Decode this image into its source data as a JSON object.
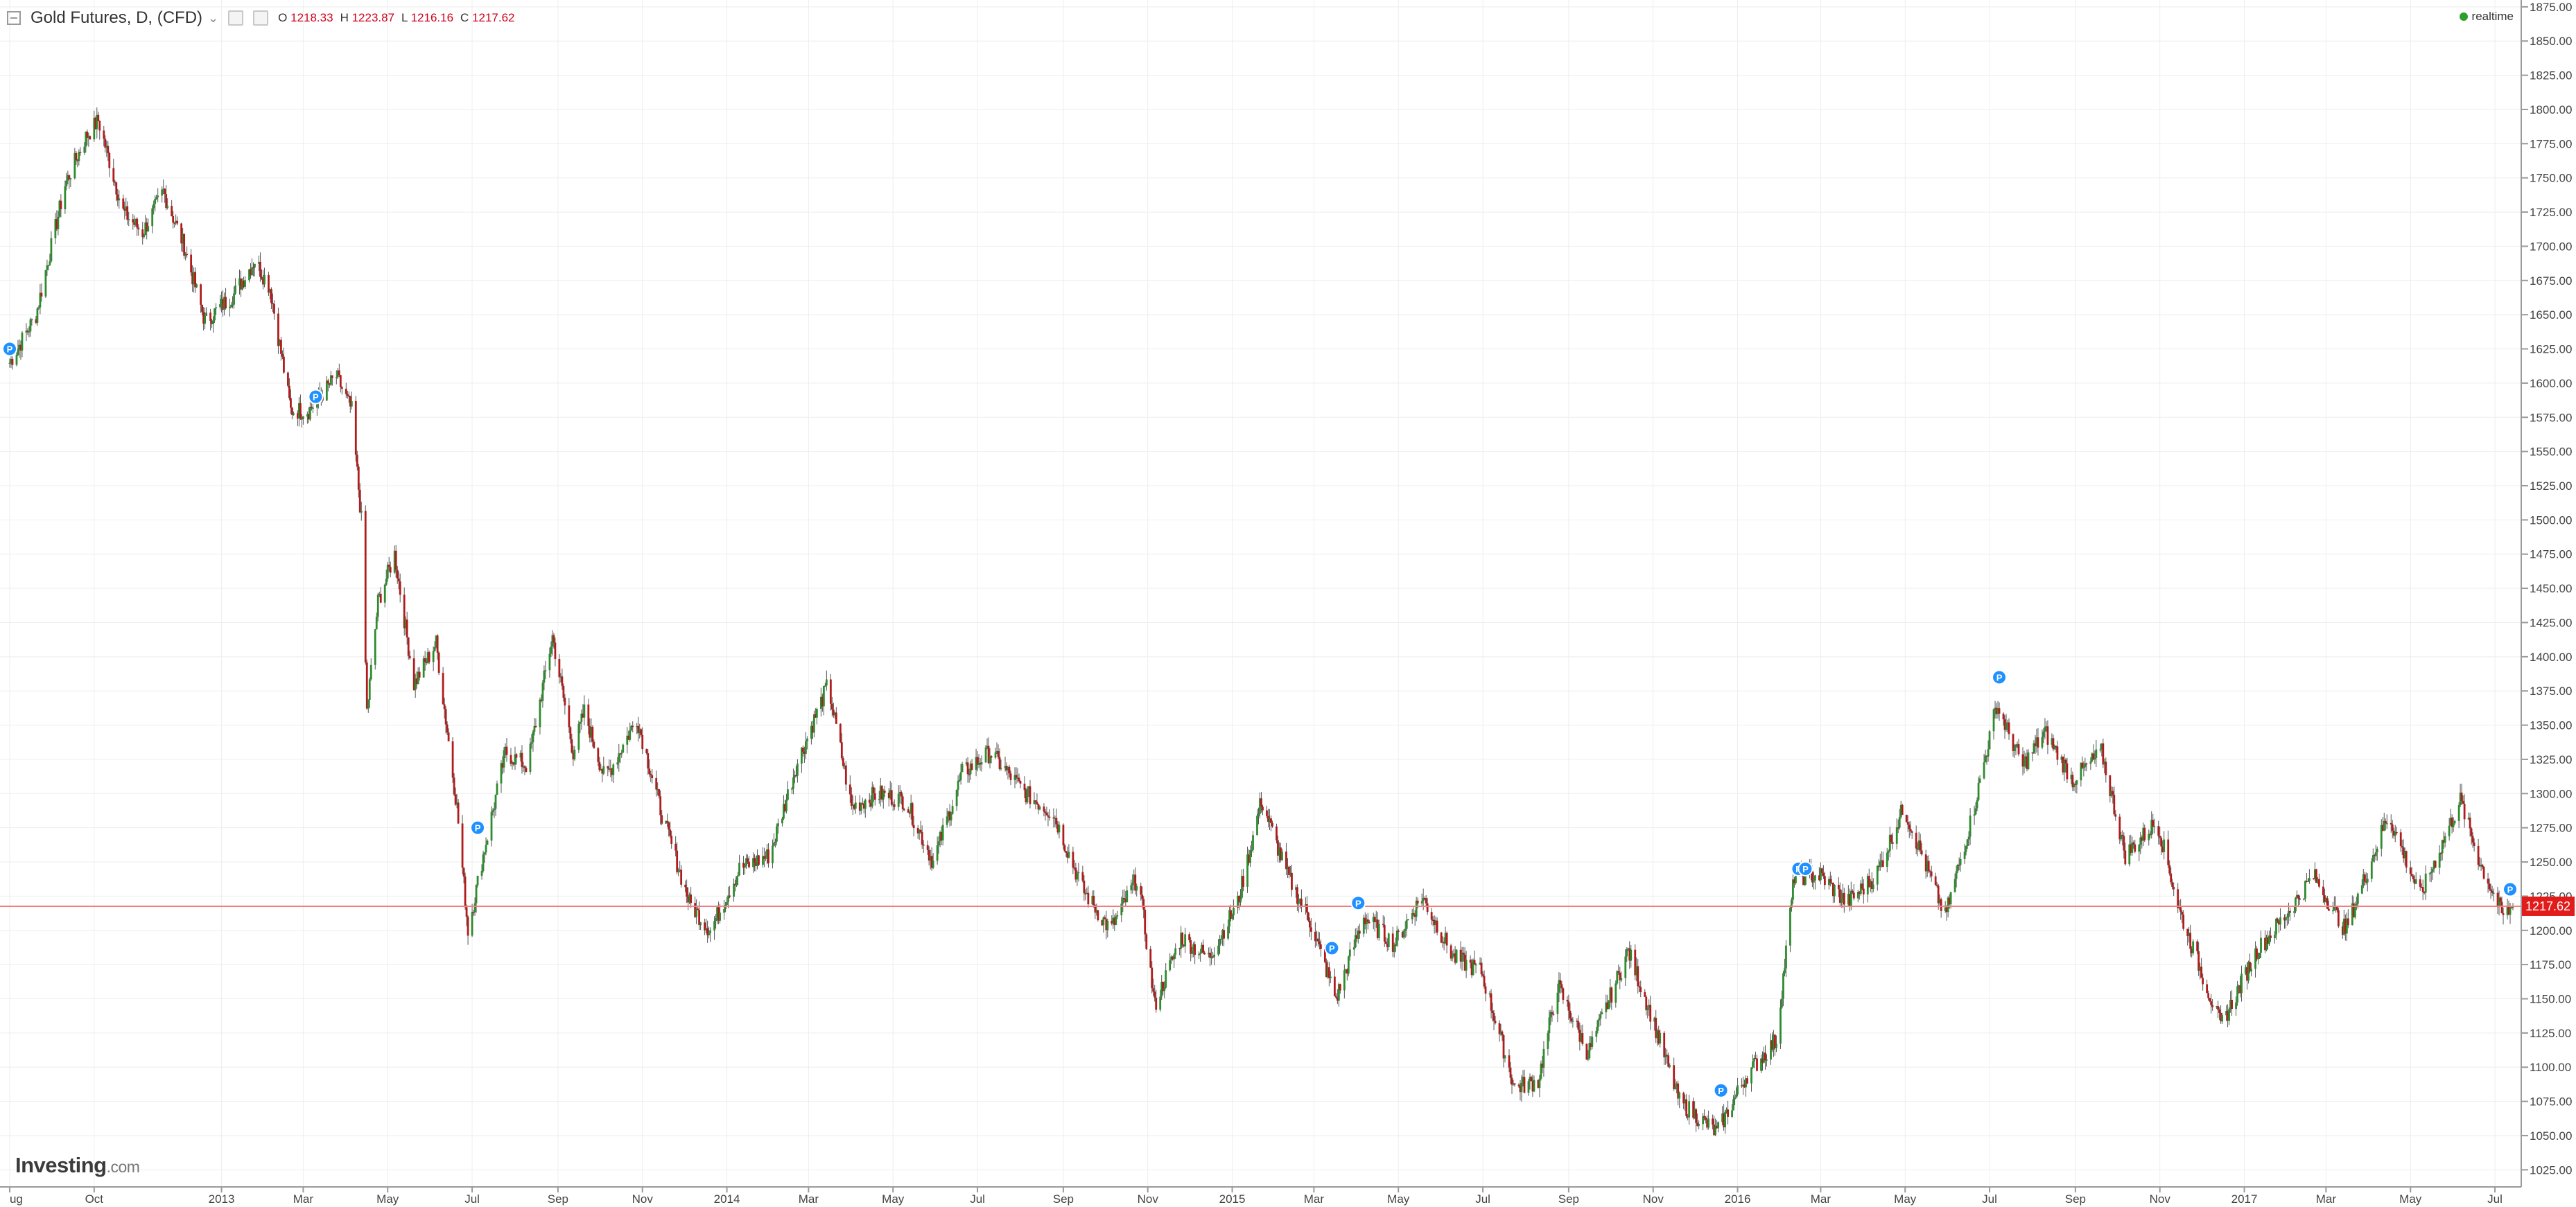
{
  "header": {
    "title": "Gold Futures, D, (CFD)",
    "ohlc": [
      {
        "label": "O",
        "value": "1218.33"
      },
      {
        "label": "H",
        "value": "1223.87"
      },
      {
        "label": "L",
        "value": "1216.16"
      },
      {
        "label": "C",
        "value": "1217.62"
      }
    ],
    "status": "realtime"
  },
  "logo": {
    "main": "Investing",
    "suffix": ".com"
  },
  "colors": {
    "up": "#2e8b2e",
    "down": "#b01c1c",
    "price_line": "#f08080",
    "price_tag": "#e21b1b",
    "grid": "#eeeeee",
    "marker": "#1e90ff"
  },
  "chart_data": {
    "type": "candlestick",
    "ylim": [
      1012.5,
      1880
    ],
    "y_ticks": [
      "1025.00",
      "1050.00",
      "1075.00",
      "1100.00",
      "1125.00",
      "1150.00",
      "1175.00",
      "1200.00",
      "1225.00",
      "1250.00",
      "1275.00",
      "1300.00",
      "1325.00",
      "1350.00",
      "1375.00",
      "1400.00",
      "1425.00",
      "1450.00",
      "1475.00",
      "1500.00",
      "1525.00",
      "1550.00",
      "1575.00",
      "1600.00",
      "1625.00",
      "1650.00",
      "1675.00",
      "1700.00",
      "1725.00",
      "1750.00",
      "1775.00",
      "1800.00",
      "1825.00",
      "1850.00",
      "1875.00"
    ],
    "x_ticks": [
      {
        "label": "ug",
        "date": "2012-08-01"
      },
      {
        "label": "Oct",
        "date": "2012-10-01"
      },
      {
        "label": "2013",
        "date": "2013-01-01"
      },
      {
        "label": "Mar",
        "date": "2013-03-01"
      },
      {
        "label": "May",
        "date": "2013-05-01"
      },
      {
        "label": "Jul",
        "date": "2013-07-01"
      },
      {
        "label": "Sep",
        "date": "2013-09-01"
      },
      {
        "label": "Nov",
        "date": "2013-11-01"
      },
      {
        "label": "2014",
        "date": "2014-01-01"
      },
      {
        "label": "Mar",
        "date": "2014-03-01"
      },
      {
        "label": "May",
        "date": "2014-05-01"
      },
      {
        "label": "Jul",
        "date": "2014-07-01"
      },
      {
        "label": "Sep",
        "date": "2014-09-01"
      },
      {
        "label": "Nov",
        "date": "2014-11-01"
      },
      {
        "label": "2015",
        "date": "2015-01-01"
      },
      {
        "label": "Mar",
        "date": "2015-03-01"
      },
      {
        "label": "May",
        "date": "2015-05-01"
      },
      {
        "label": "Jul",
        "date": "2015-07-01"
      },
      {
        "label": "Sep",
        "date": "2015-09-01"
      },
      {
        "label": "Nov",
        "date": "2015-11-01"
      },
      {
        "label": "2016",
        "date": "2016-01-01"
      },
      {
        "label": "Mar",
        "date": "2016-03-01"
      },
      {
        "label": "May",
        "date": "2016-05-01"
      },
      {
        "label": "Jul",
        "date": "2016-07-01"
      },
      {
        "label": "Sep",
        "date": "2016-09-01"
      },
      {
        "label": "Nov",
        "date": "2016-11-01"
      },
      {
        "label": "2017",
        "date": "2017-01-01"
      },
      {
        "label": "Mar",
        "date": "2017-03-01"
      },
      {
        "label": "May",
        "date": "2017-05-01"
      },
      {
        "label": "Jul",
        "date": "2017-07-01"
      }
    ],
    "close_path": [
      {
        "date": "2012-08-01",
        "close": 1615
      },
      {
        "date": "2012-08-20",
        "close": 1650
      },
      {
        "date": "2012-09-10",
        "close": 1745
      },
      {
        "date": "2012-09-25",
        "close": 1780
      },
      {
        "date": "2012-10-04",
        "close": 1792
      },
      {
        "date": "2012-10-22",
        "close": 1725
      },
      {
        "date": "2012-11-05",
        "close": 1710
      },
      {
        "date": "2012-11-20",
        "close": 1740
      },
      {
        "date": "2012-12-05",
        "close": 1700
      },
      {
        "date": "2012-12-20",
        "close": 1645
      },
      {
        "date": "2013-01-10",
        "close": 1665
      },
      {
        "date": "2013-01-25",
        "close": 1690
      },
      {
        "date": "2013-02-05",
        "close": 1670
      },
      {
        "date": "2013-02-20",
        "close": 1580
      },
      {
        "date": "2013-03-05",
        "close": 1580
      },
      {
        "date": "2013-03-25",
        "close": 1605
      },
      {
        "date": "2013-04-05",
        "close": 1580
      },
      {
        "date": "2013-04-12",
        "close": 1500
      },
      {
        "date": "2013-04-16",
        "close": 1360
      },
      {
        "date": "2013-04-24",
        "close": 1440
      },
      {
        "date": "2013-05-06",
        "close": 1475
      },
      {
        "date": "2013-05-20",
        "close": 1380
      },
      {
        "date": "2013-06-05",
        "close": 1410
      },
      {
        "date": "2013-06-20",
        "close": 1290
      },
      {
        "date": "2013-06-28",
        "close": 1200
      },
      {
        "date": "2013-07-10",
        "close": 1260
      },
      {
        "date": "2013-07-25",
        "close": 1330
      },
      {
        "date": "2013-08-10",
        "close": 1320
      },
      {
        "date": "2013-08-28",
        "close": 1415
      },
      {
        "date": "2013-09-12",
        "close": 1330
      },
      {
        "date": "2013-09-20",
        "close": 1360
      },
      {
        "date": "2013-10-05",
        "close": 1310
      },
      {
        "date": "2013-10-28",
        "close": 1355
      },
      {
        "date": "2013-11-15",
        "close": 1285
      },
      {
        "date": "2013-12-05",
        "close": 1220
      },
      {
        "date": "2013-12-20",
        "close": 1200
      },
      {
        "date": "2014-01-10",
        "close": 1245
      },
      {
        "date": "2014-02-01",
        "close": 1255
      },
      {
        "date": "2014-02-20",
        "close": 1320
      },
      {
        "date": "2014-03-15",
        "close": 1380
      },
      {
        "date": "2014-04-01",
        "close": 1290
      },
      {
        "date": "2014-04-20",
        "close": 1300
      },
      {
        "date": "2014-05-10",
        "close": 1295
      },
      {
        "date": "2014-05-30",
        "close": 1250
      },
      {
        "date": "2014-06-20",
        "close": 1315
      },
      {
        "date": "2014-07-10",
        "close": 1330
      },
      {
        "date": "2014-08-05",
        "close": 1300
      },
      {
        "date": "2014-08-25",
        "close": 1285
      },
      {
        "date": "2014-09-15",
        "close": 1230
      },
      {
        "date": "2014-10-05",
        "close": 1200
      },
      {
        "date": "2014-10-25",
        "close": 1240
      },
      {
        "date": "2014-11-06",
        "close": 1145
      },
      {
        "date": "2014-11-25",
        "close": 1195
      },
      {
        "date": "2014-12-15",
        "close": 1180
      },
      {
        "date": "2015-01-05",
        "close": 1220
      },
      {
        "date": "2015-01-22",
        "close": 1295
      },
      {
        "date": "2015-02-10",
        "close": 1240
      },
      {
        "date": "2015-02-25",
        "close": 1210
      },
      {
        "date": "2015-03-17",
        "close": 1150
      },
      {
        "date": "2015-04-06",
        "close": 1210
      },
      {
        "date": "2015-04-28",
        "close": 1190
      },
      {
        "date": "2015-05-18",
        "close": 1225
      },
      {
        "date": "2015-06-10",
        "close": 1180
      },
      {
        "date": "2015-06-30",
        "close": 1170
      },
      {
        "date": "2015-07-24",
        "close": 1085
      },
      {
        "date": "2015-08-10",
        "close": 1090
      },
      {
        "date": "2015-08-24",
        "close": 1160
      },
      {
        "date": "2015-09-15",
        "close": 1110
      },
      {
        "date": "2015-10-14",
        "close": 1185
      },
      {
        "date": "2015-10-30",
        "close": 1140
      },
      {
        "date": "2015-11-20",
        "close": 1075
      },
      {
        "date": "2015-12-17",
        "close": 1052
      },
      {
        "date": "2016-01-08",
        "close": 1095
      },
      {
        "date": "2016-01-29",
        "close": 1120
      },
      {
        "date": "2016-02-11",
        "close": 1240
      },
      {
        "date": "2016-03-01",
        "close": 1240
      },
      {
        "date": "2016-03-20",
        "close": 1220
      },
      {
        "date": "2016-04-10",
        "close": 1240
      },
      {
        "date": "2016-04-30",
        "close": 1290
      },
      {
        "date": "2016-05-30",
        "close": 1210
      },
      {
        "date": "2016-06-20",
        "close": 1290
      },
      {
        "date": "2016-07-06",
        "close": 1365
      },
      {
        "date": "2016-07-25",
        "close": 1320
      },
      {
        "date": "2016-08-10",
        "close": 1345
      },
      {
        "date": "2016-08-30",
        "close": 1310
      },
      {
        "date": "2016-09-20",
        "close": 1330
      },
      {
        "date": "2016-10-07",
        "close": 1255
      },
      {
        "date": "2016-10-30",
        "close": 1280
      },
      {
        "date": "2016-11-15",
        "close": 1215
      },
      {
        "date": "2016-12-15",
        "close": 1130
      },
      {
        "date": "2017-01-10",
        "close": 1185
      },
      {
        "date": "2017-01-30",
        "close": 1210
      },
      {
        "date": "2017-02-20",
        "close": 1240
      },
      {
        "date": "2017-03-15",
        "close": 1200
      },
      {
        "date": "2017-04-15",
        "close": 1285
      },
      {
        "date": "2017-05-08",
        "close": 1225
      },
      {
        "date": "2017-06-06",
        "close": 1295
      },
      {
        "date": "2017-06-20",
        "close": 1250
      },
      {
        "date": "2017-07-07",
        "close": 1210
      },
      {
        "date": "2017-07-14",
        "close": 1217.62
      }
    ],
    "events": [
      {
        "date": "2012-08-01",
        "price": 1625,
        "label": "P"
      },
      {
        "date": "2013-03-10",
        "price": 1590,
        "label": "P"
      },
      {
        "date": "2013-07-05",
        "price": 1275,
        "label": "P"
      },
      {
        "date": "2015-03-14",
        "price": 1187,
        "label": "P"
      },
      {
        "date": "2015-04-02",
        "price": 1220,
        "label": "P"
      },
      {
        "date": "2015-12-20",
        "price": 1083,
        "label": "P"
      },
      {
        "date": "2016-02-14",
        "price": 1245,
        "label": "P"
      },
      {
        "date": "2016-02-19",
        "price": 1245,
        "label": "P"
      },
      {
        "date": "2016-07-08",
        "price": 1385,
        "label": "P"
      },
      {
        "date": "2017-07-12",
        "price": 1230,
        "label": "P"
      }
    ],
    "last_price": "1217.62",
    "grid": true
  }
}
